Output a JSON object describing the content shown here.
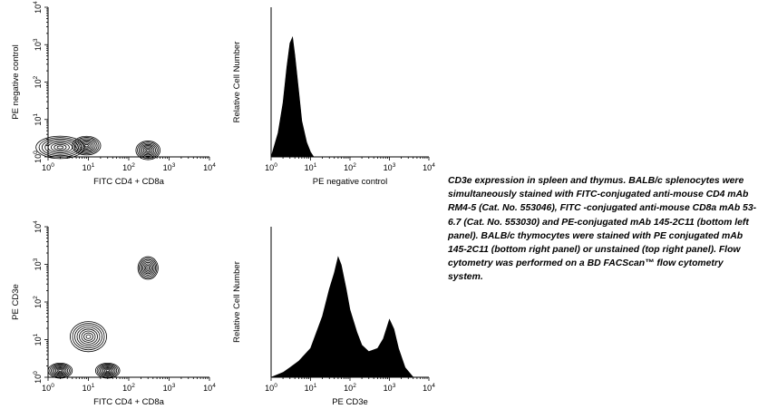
{
  "chart_data": [
    {
      "type": "contour",
      "x_scale": "log",
      "y_scale": "log",
      "xlim": [
        1,
        10000
      ],
      "ylim": [
        1,
        10000
      ],
      "xlabel": "FITC CD4 + CD8a",
      "ylabel": "PE negative control",
      "x_ticks": [
        "10^0",
        "10^1",
        "10^2",
        "10^3",
        "10^4"
      ],
      "y_ticks": [
        "10^0",
        "10^1",
        "10^2",
        "10^3",
        "10^4"
      ],
      "populations": [
        {
          "x": 2,
          "y": 1.8,
          "spread_x": 0.6,
          "spread_y": 0.3
        },
        {
          "x": 9,
          "y": 2,
          "spread_x": 0.35,
          "spread_y": 0.25
        },
        {
          "x": 300,
          "y": 1.5,
          "spread_x": 0.3,
          "spread_y": 0.25
        }
      ]
    },
    {
      "type": "histogram",
      "x_scale": "log",
      "xlim": [
        1,
        10000
      ],
      "xlabel": "PE negative control",
      "ylabel": "Relative Cell Number",
      "x_ticks": [
        "10^0",
        "10^1",
        "10^2",
        "10^3",
        "10^4"
      ],
      "x": [
        1,
        1.5,
        2,
        2.5,
        3,
        3.5,
        4,
        5,
        6,
        8,
        10,
        12
      ],
      "y": [
        0,
        20,
        45,
        75,
        95,
        100,
        85,
        55,
        30,
        12,
        4,
        0
      ]
    },
    {
      "type": "contour",
      "x_scale": "log",
      "y_scale": "log",
      "xlim": [
        1,
        10000
      ],
      "ylim": [
        1,
        10000
      ],
      "xlabel": "FITC CD4 + CD8a",
      "ylabel": "PE CD3e",
      "x_ticks": [
        "10^0",
        "10^1",
        "10^2",
        "10^3",
        "10^4"
      ],
      "y_ticks": [
        "10^0",
        "10^1",
        "10^2",
        "10^3",
        "10^4"
      ],
      "populations": [
        {
          "x": 10,
          "y": 12,
          "spread_x": 0.45,
          "spread_y": 0.4
        },
        {
          "x": 300,
          "y": 800,
          "spread_x": 0.25,
          "spread_y": 0.3
        },
        {
          "x": 2,
          "y": 1.5,
          "spread_x": 0.3,
          "spread_y": 0.2
        },
        {
          "x": 30,
          "y": 1.5,
          "spread_x": 0.3,
          "spread_y": 0.2
        }
      ]
    },
    {
      "type": "histogram",
      "x_scale": "log",
      "xlim": [
        1,
        10000
      ],
      "xlabel": "PE CD3e",
      "ylabel": "Relative Cell Number",
      "x_ticks": [
        "10^0",
        "10^1",
        "10^2",
        "10^3",
        "10^4"
      ],
      "x": [
        1,
        2,
        3,
        5,
        10,
        20,
        30,
        40,
        50,
        60,
        80,
        100,
        150,
        200,
        300,
        500,
        700,
        1000,
        1300,
        1700,
        2500,
        4000
      ],
      "y": [
        0,
        3,
        6,
        10,
        18,
        38,
        55,
        65,
        75,
        70,
        55,
        42,
        28,
        20,
        16,
        18,
        24,
        36,
        30,
        18,
        6,
        0
      ]
    }
  ],
  "caption": {
    "title": "CD3e expression in spleen and thymus.",
    "body": " BALB/c splenocytes were simultaneously stained with FITC-conjugated anti-mouse CD4 mAb RM4-5 (Cat. No. 553046), FITC -conjugated anti-mouse CD8a mAb 53-6.7 (Cat. No. 553030) and PE-conjugated mAb 145-2C11 (bottom left panel). BALB/c thymocytes were stained with PE conjugated mAb 145-2C11 (bottom right panel) or unstained (top right panel). Flow cytometry was performed on a BD FACScan™ flow cytometry system."
  }
}
